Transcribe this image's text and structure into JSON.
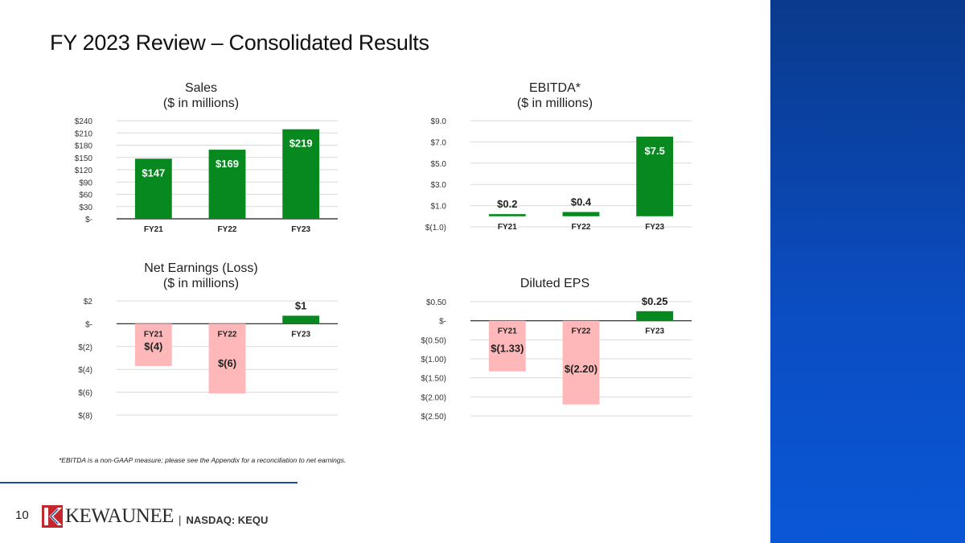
{
  "slide": {
    "title": "FY 2023 Review – Consolidated Results",
    "footnote": "*EBITDA is a non-GAAP measure; please see the Appendix for a reconciliation to net earnings.",
    "page_number": "10",
    "company": "KEWAUNEE",
    "ticker_separator": "|",
    "ticker": "NASDAQ: KEQU"
  },
  "colors": {
    "positive_bar": "#08891f",
    "negative_bar": "#ffb8b9",
    "gridline": "#d9d9d9",
    "panel_blue": "#0b4cc0",
    "logo_red": "#c4262e",
    "logo_blue": "#1d4f9e"
  },
  "chart_data": [
    {
      "id": "sales",
      "type": "bar",
      "title": "Sales",
      "subtitle": "($ in millions)",
      "categories": [
        "FY21",
        "FY22",
        "FY23"
      ],
      "values": [
        147,
        169,
        219
      ],
      "data_labels": [
        "$147",
        "$169",
        "$219"
      ],
      "ylim": [
        0,
        240
      ],
      "yticks": [
        0,
        30,
        60,
        90,
        120,
        150,
        180,
        210,
        240
      ],
      "ytick_labels": [
        "$-",
        "$30",
        "$60",
        "$90",
        "$120",
        "$150",
        "$180",
        "$210",
        "$240"
      ],
      "grid": true
    },
    {
      "id": "ebitda",
      "type": "bar",
      "title": "EBITDA*",
      "subtitle": "($ in millions)",
      "categories": [
        "FY21",
        "FY22",
        "FY23"
      ],
      "values": [
        0.2,
        0.4,
        7.5
      ],
      "data_labels": [
        "$0.2",
        "$0.4",
        "$7.5"
      ],
      "ylim": [
        -1.0,
        9.0
      ],
      "yticks": [
        -1.0,
        1.0,
        3.0,
        5.0,
        7.0,
        9.0
      ],
      "ytick_labels": [
        "$(1.0)",
        "$1.0",
        "$3.0",
        "$5.0",
        "$7.0",
        "$9.0"
      ],
      "grid": true
    },
    {
      "id": "net_earnings",
      "type": "bar",
      "title": "Net Earnings (Loss)",
      "subtitle": "($ in millions)",
      "categories": [
        "FY21",
        "FY22",
        "FY23"
      ],
      "values": [
        -3.7,
        -6.1,
        0.7
      ],
      "data_labels": [
        "$(4)",
        "$(6)",
        "$1"
      ],
      "ylim": [
        -8,
        2
      ],
      "yticks": [
        -8,
        -6,
        -4,
        -2,
        0,
        2
      ],
      "ytick_labels": [
        "$(8)",
        "$(6)",
        "$(4)",
        "$(2)",
        "$-",
        "$2"
      ],
      "grid": true
    },
    {
      "id": "diluted_eps",
      "type": "bar",
      "title": "Diluted EPS",
      "subtitle": "",
      "categories": [
        "FY21",
        "FY22",
        "FY23"
      ],
      "values": [
        -1.33,
        -2.2,
        0.25
      ],
      "data_labels": [
        "$(1.33)",
        "$(2.20)",
        "$0.25"
      ],
      "ylim": [
        -2.5,
        0.5
      ],
      "yticks": [
        -2.5,
        -2.0,
        -1.5,
        -1.0,
        -0.5,
        0,
        0.5
      ],
      "ytick_labels": [
        "$(2.50)",
        "$(2.00)",
        "$(1.50)",
        "$(1.00)",
        "$(0.50)",
        "$-",
        "$0.50"
      ],
      "grid": true
    }
  ]
}
